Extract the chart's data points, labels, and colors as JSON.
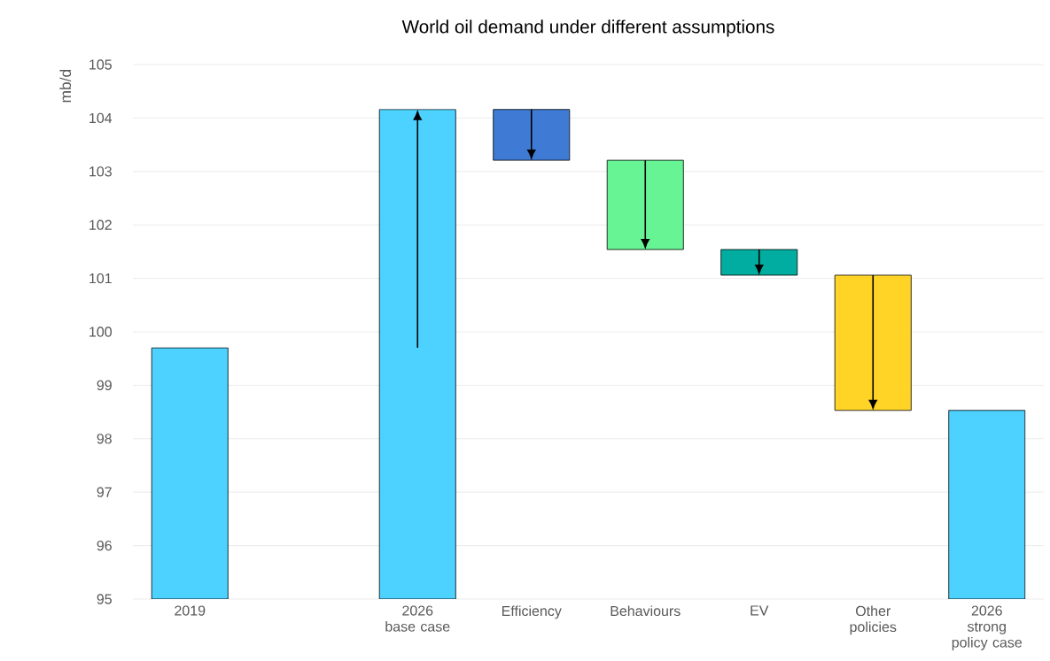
{
  "chart_data": {
    "type": "bar",
    "title": "World oil demand under different assumptions",
    "ylabel": "mb/d",
    "categories": [
      "2019",
      null,
      "2026 base case",
      "Efficiency",
      "Behaviours",
      "EV",
      "Other policies",
      "2026 strong policy case"
    ],
    "base": [
      95,
      null,
      95,
      104.16,
      103.21,
      101.54,
      101.06,
      95
    ],
    "values": [
      4.7,
      null,
      9.16,
      -0.95,
      -1.67,
      -0.48,
      -2.53,
      3.53
    ],
    "colors": [
      "#4dd2ff",
      null,
      "#4dd2ff",
      "#3f7bd4",
      "#66f494",
      "#00ada0",
      "#ffd426",
      "#4dd2ff"
    ],
    "ylim": [
      95,
      105
    ],
    "yticks": [
      95,
      96,
      97,
      98,
      99,
      100,
      101,
      102,
      103,
      104,
      105
    ],
    "grid": "y"
  }
}
